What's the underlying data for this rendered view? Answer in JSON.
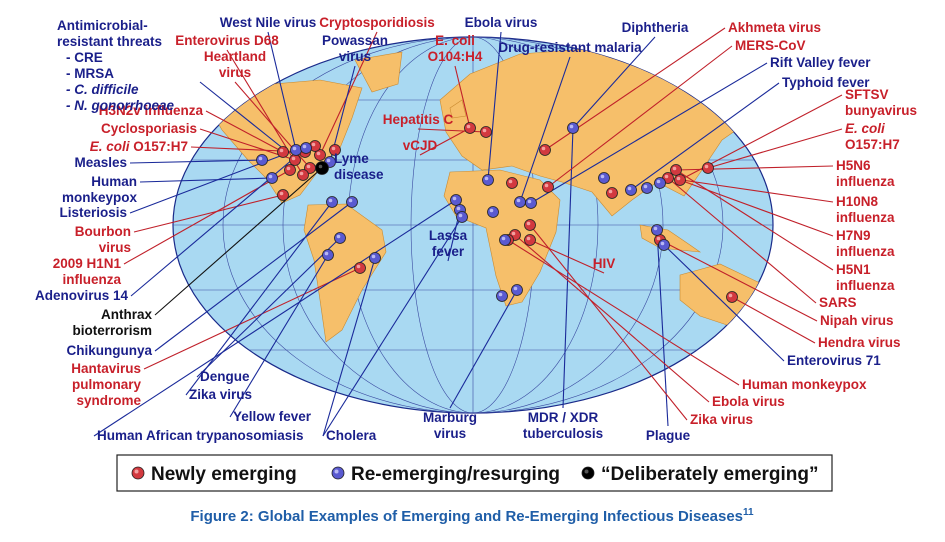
{
  "amr": {
    "title": [
      "Antimicrobial-",
      "resistant threats"
    ],
    "items": [
      "- CRE",
      "- MRSA",
      "- C. difficile",
      "- N. gonorrhoeae"
    ]
  },
  "labels": [
    [
      "H3N2v influenza"
    ],
    [
      "Cyclosporiasis"
    ],
    [
      "E. coli O157:H7"
    ],
    [
      "Measles"
    ],
    [
      "Human",
      "monkeypox"
    ],
    [
      "Listeriosis"
    ],
    [
      "Bourbon",
      "virus"
    ],
    [
      "2009 H1N1",
      "influenza"
    ],
    [
      "Adenovirus 14"
    ],
    [
      "Anthrax",
      "bioterrorism"
    ],
    [
      "Chikungunya"
    ],
    [
      "Hantavirus",
      "pulmonary",
      "syndrome"
    ],
    [
      "Dengue"
    ],
    [
      "Zika virus"
    ],
    [
      "Yellow fever"
    ],
    [
      "Human African trypanosomiasis"
    ],
    [
      "Cholera"
    ],
    [
      "Marburg",
      "virus"
    ],
    [
      "MDR / XDR",
      "tuberculosis"
    ],
    [
      "Plague"
    ],
    [
      "Zika virus"
    ],
    [
      "Ebola virus"
    ],
    [
      "Human monkeypox"
    ],
    [
      "Enterovirus 71"
    ],
    [
      "Hendra virus"
    ],
    [
      "Nipah virus"
    ],
    [
      "SARS"
    ],
    [
      "H5N1",
      "influenza"
    ],
    [
      "H7N9",
      "influenza"
    ],
    [
      "H10N8",
      "influenza"
    ],
    [
      "H5N6",
      "influenza"
    ],
    [
      "E. coli",
      "O157:H7"
    ],
    [
      "SFTSV",
      "bunyavirus"
    ],
    [
      "Typhoid fever"
    ],
    [
      "Rift Valley fever"
    ],
    [
      "MERS-CoV"
    ],
    [
      "Akhmeta virus"
    ],
    [
      "West Nile virus"
    ],
    [
      "Enterovirus D68"
    ],
    [
      "Heartland",
      "virus"
    ],
    [
      "Cryptosporidiosis"
    ],
    [
      "Powassan",
      "virus"
    ],
    [
      "Ebola virus"
    ],
    [
      "E. coli",
      "O104:H4"
    ],
    [
      "Diphtheria"
    ],
    [
      "Drug-resistant malaria"
    ],
    [
      "Hepatitis C"
    ],
    [
      "vCJD"
    ],
    [
      "Lyme",
      "disease"
    ],
    [
      "Lassa",
      "fever"
    ],
    [
      "HIV"
    ]
  ],
  "legend": [
    "Newly emerging",
    "Re-emerging/resurging",
    "“Deliberately emerging”"
  ],
  "caption": {
    "text": "Figure 2: Global Examples of Emerging and Re-Emerging Infectious Diseases",
    "superscript": "11"
  }
}
